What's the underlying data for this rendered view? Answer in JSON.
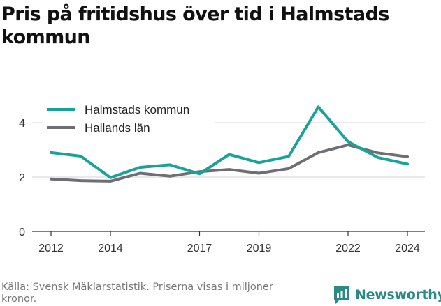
{
  "title": "Pris på fritidshus över tid i Halmstads kommun",
  "source": "Källa: Svensk Mäklarstatistik. Priserna visas i miljoner kronor.",
  "brand": {
    "name": "Newsworthy",
    "icon": "bar-chart-icon",
    "color": "#2a8a84"
  },
  "chart_data": {
    "type": "line",
    "x": [
      2012,
      2013,
      2014,
      2015,
      2016,
      2017,
      2018,
      2019,
      2020,
      2021,
      2022,
      2023,
      2024
    ],
    "series": [
      {
        "name": "Halmstads kommun",
        "color": "#17a39a",
        "values": [
          2.9,
          2.77,
          1.98,
          2.36,
          2.45,
          2.12,
          2.83,
          2.53,
          2.76,
          4.58,
          3.3,
          2.72,
          2.48
        ]
      },
      {
        "name": "Hallands län",
        "color": "#6f6e74",
        "values": [
          1.93,
          1.87,
          1.85,
          2.14,
          2.03,
          2.2,
          2.28,
          2.14,
          2.31,
          2.9,
          3.18,
          2.89,
          2.75
        ]
      }
    ],
    "xticks": [
      "2012",
      "2014",
      "2017",
      "2019",
      "2022",
      "2024"
    ],
    "yticks": [
      "0",
      "2",
      "4"
    ],
    "ylim": [
      0,
      5
    ],
    "xlim": [
      2012,
      2024
    ],
    "grid": true,
    "legend": "top-left"
  }
}
